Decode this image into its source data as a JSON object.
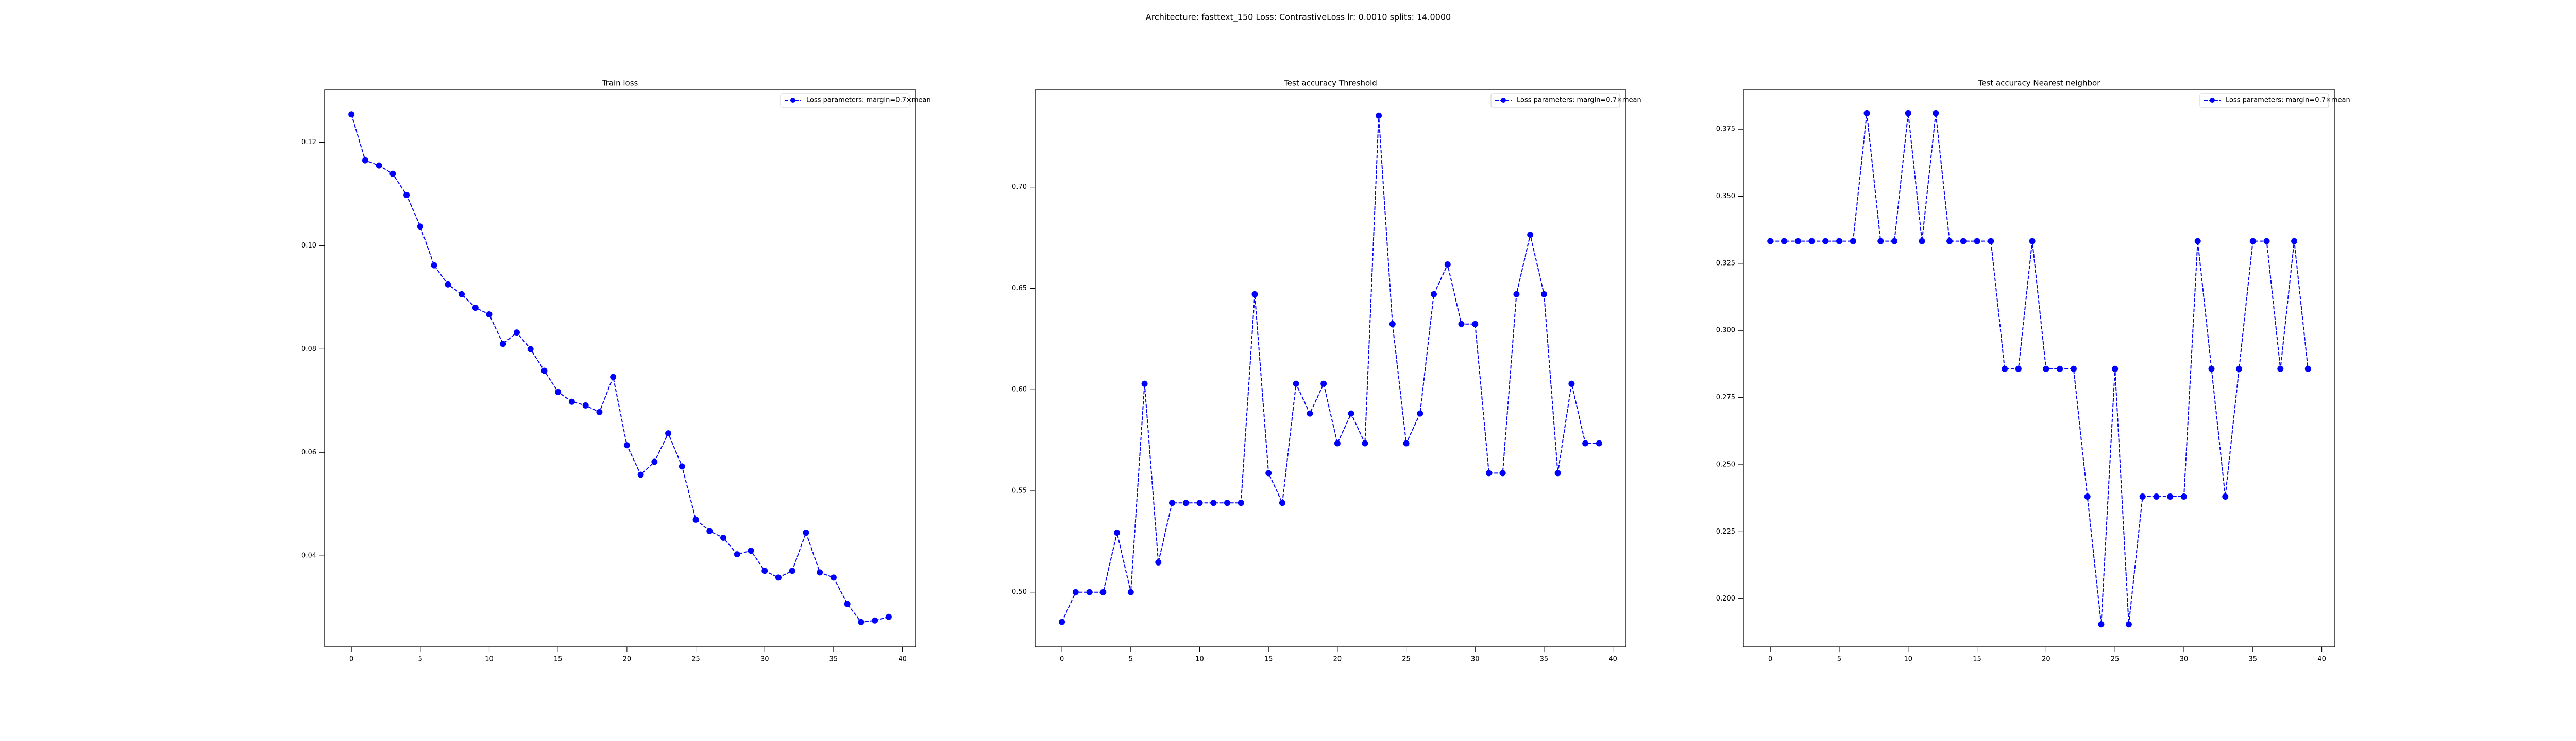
{
  "title": "Architecture: fasttext_150 Loss: ContrastiveLoss lr: 0.0010 splits: 14.0000",
  "chart_data": [
    {
      "type": "line",
      "title": "Train loss",
      "x": [
        0,
        1,
        2,
        3,
        4,
        5,
        6,
        7,
        8,
        9,
        10,
        11,
        12,
        13,
        14,
        15,
        16,
        17,
        18,
        19,
        20,
        21,
        22,
        23,
        24,
        25,
        26,
        27,
        28,
        29,
        30,
        31,
        32,
        33,
        34,
        35,
        36,
        37,
        38,
        39
      ],
      "series": [
        {
          "name": "Loss parameters: margin=0.7×mean",
          "color": "#0000ff",
          "values": [
            0.1254,
            0.1165,
            0.1155,
            0.1139,
            0.1098,
            0.1037,
            0.0962,
            0.0925,
            0.0906,
            0.088,
            0.0867,
            0.081,
            0.0832,
            0.08,
            0.0758,
            0.0717,
            0.0698,
            0.0691,
            0.0678,
            0.0746,
            0.0614,
            0.0557,
            0.0582,
            0.0637,
            0.0573,
            0.047,
            0.0448,
            0.0435,
            0.0403,
            0.041,
            0.0371,
            0.0358,
            0.0371,
            0.0445,
            0.0368,
            0.0358,
            0.0307,
            0.0272,
            0.0275,
            0.0282
          ]
        }
      ],
      "xlim": [
        -1.95,
        40.95
      ],
      "ylim": [
        0.0224,
        0.1302
      ],
      "xticks": [
        0,
        5,
        10,
        15,
        20,
        25,
        30,
        35,
        40
      ],
      "yticks": [
        {
          "value": 0.04,
          "label": "0.04"
        },
        {
          "value": 0.06,
          "label": "0.06"
        },
        {
          "value": 0.08,
          "label": "0.08"
        },
        {
          "value": 0.1,
          "label": "0.10"
        },
        0.12
      ],
      "legend": "upper right",
      "linestyle": "dashed",
      "marker": "o"
    },
    {
      "type": "line",
      "title": "Test accuracy Threshold",
      "x": [
        0,
        1,
        2,
        3,
        4,
        5,
        6,
        7,
        8,
        9,
        10,
        11,
        12,
        13,
        14,
        15,
        16,
        17,
        18,
        19,
        20,
        21,
        22,
        23,
        24,
        25,
        26,
        27,
        28,
        29,
        30,
        31,
        32,
        33,
        34,
        35,
        36,
        37,
        38,
        39
      ],
      "series": [
        {
          "name": "Loss parameters: margin=0.7×mean",
          "color": "#0000ff",
          "values": [
            0.4853,
            0.5,
            0.5,
            0.5,
            0.5294,
            0.5,
            0.6029,
            0.5147,
            0.5441,
            0.5441,
            0.5441,
            0.5441,
            0.5441,
            0.5441,
            0.6471,
            0.5588,
            0.5441,
            0.6029,
            0.5882,
            0.6029,
            0.5735,
            0.5882,
            0.5735,
            0.7353,
            0.6324,
            0.5735,
            0.5882,
            0.6471,
            0.6618,
            0.6324,
            0.6324,
            0.5588,
            0.5588,
            0.6471,
            0.6765,
            0.6471,
            0.5588,
            0.6029,
            0.5735,
            0.5735
          ]
        }
      ],
      "xlim": [
        -1.95,
        40.95
      ],
      "ylim": [
        0.473,
        0.7482
      ],
      "xticks": [
        0,
        5,
        10,
        15,
        20,
        25,
        30,
        35,
        40
      ],
      "yticks": [
        {
          "value": 0.5,
          "label": "0.50"
        },
        0.55,
        {
          "value": 0.6,
          "label": "0.60"
        },
        0.65,
        {
          "value": 0.7,
          "label": "0.70"
        }
      ],
      "legend": "upper right",
      "linestyle": "dashed",
      "marker": "o"
    },
    {
      "type": "line",
      "title": "Test accuracy Nearest neighbor",
      "x": [
        0,
        1,
        2,
        3,
        4,
        5,
        6,
        7,
        8,
        9,
        10,
        11,
        12,
        13,
        14,
        15,
        16,
        17,
        18,
        19,
        20,
        21,
        22,
        23,
        24,
        25,
        26,
        27,
        28,
        29,
        30,
        31,
        32,
        33,
        34,
        35,
        36,
        37,
        38,
        39
      ],
      "series": [
        {
          "name": "Loss parameters: margin=0.7×mean",
          "color": "#0000ff",
          "values": [
            0.3333,
            0.3333,
            0.3333,
            0.3333,
            0.3333,
            0.3333,
            0.3333,
            0.381,
            0.3333,
            0.3333,
            0.381,
            0.3333,
            0.381,
            0.3333,
            0.3333,
            0.3333,
            0.3333,
            0.2857,
            0.2857,
            0.3333,
            0.2857,
            0.2857,
            0.2857,
            0.2381,
            0.1905,
            0.2857,
            0.1905,
            0.2381,
            0.2381,
            0.2381,
            0.2381,
            0.3333,
            0.2857,
            0.2381,
            0.2857,
            0.3333,
            0.3333,
            0.2857,
            0.3333,
            0.2857
          ]
        }
      ],
      "xlim": [
        -1.95,
        40.95
      ],
      "ylim": [
        0.1821,
        0.3898
      ],
      "xticks": [
        0,
        5,
        10,
        15,
        20,
        25,
        30,
        35,
        40
      ],
      "yticks": [
        {
          "value": 0.2,
          "label": "0.200"
        },
        0.225,
        {
          "value": 0.25,
          "label": "0.250"
        },
        0.275,
        {
          "value": 0.3,
          "label": "0.300"
        },
        0.325,
        {
          "value": 0.35,
          "label": "0.350"
        },
        0.375
      ],
      "legend": "upper right",
      "linestyle": "dashed",
      "marker": "o"
    }
  ]
}
